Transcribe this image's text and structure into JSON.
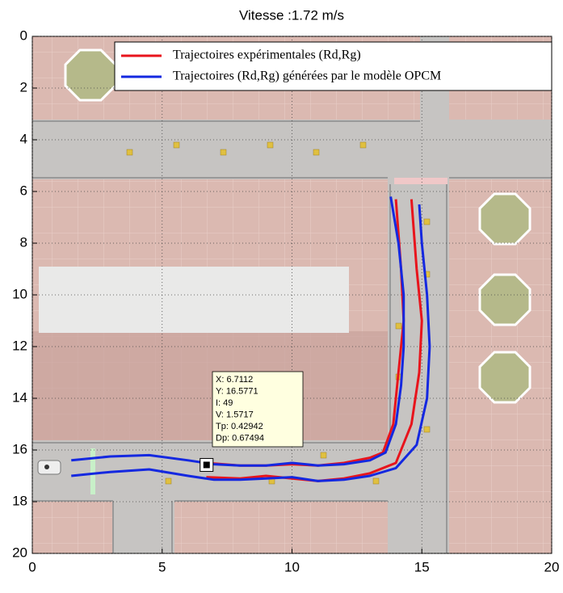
{
  "chart_data": {
    "type": "line",
    "title": "Vitesse :1.72 m/s",
    "xlim": [
      0,
      20
    ],
    "xticks": [
      0,
      5,
      10,
      15,
      20
    ],
    "ylim": [
      20,
      0
    ],
    "yticks": [
      0,
      2,
      4,
      6,
      8,
      10,
      12,
      14,
      16,
      18,
      20
    ],
    "grid": true,
    "legend": "top-right",
    "series": [
      {
        "name": "Trajectoires expérimentales (Rd,Rg)",
        "color": "#e8141c",
        "lines": [
          {
            "x": [
              6.7,
              8,
              9,
              10,
              11,
              12,
              13,
              13.5,
              13.9,
              14.1,
              14.3,
              14.2,
              14.0
            ],
            "values": [
              16.5,
              16.6,
              16.6,
              16.55,
              16.6,
              16.5,
              16.3,
              16.1,
              15.0,
              13.0,
              11.0,
              9.0,
              6.3
            ]
          },
          {
            "x": [
              6.7,
              8,
              9,
              10,
              11,
              12,
              13,
              14,
              14.6,
              14.9,
              15.0,
              14.8,
              14.6
            ],
            "values": [
              17.05,
              17.1,
              17.0,
              17.1,
              17.2,
              17.1,
              16.9,
              16.5,
              15.0,
              13.0,
              11.0,
              9.0,
              6.3
            ]
          }
        ]
      },
      {
        "name": "Trajectoires (Rd,Rg) générées par le modèle OPCM",
        "color": "#1428e0",
        "lines": [
          {
            "x": [
              1.5,
              3,
              4.5,
              6,
              7,
              8,
              9,
              10,
              11,
              12,
              13,
              13.6,
              14.0,
              14.2,
              14.3,
              14.3,
              14.1,
              13.8
            ],
            "values": [
              16.4,
              16.25,
              16.2,
              16.4,
              16.55,
              16.6,
              16.6,
              16.5,
              16.6,
              16.55,
              16.4,
              16.1,
              15.0,
              13.5,
              12.0,
              10.0,
              8.0,
              6.2
            ]
          },
          {
            "x": [
              1.5,
              3,
              4.5,
              6,
              7,
              8,
              9,
              10,
              11,
              12,
              13,
              14,
              14.8,
              15.2,
              15.3,
              15.2,
              15.0,
              14.9
            ],
            "values": [
              17.0,
              16.85,
              16.75,
              17.0,
              17.15,
              17.15,
              17.1,
              17.05,
              17.2,
              17.15,
              17.0,
              16.7,
              15.8,
              14.0,
              12.0,
              10.0,
              8.0,
              6.5
            ]
          }
        ]
      }
    ],
    "datatip": {
      "x": 6.7112,
      "y": 16.5771,
      "lines": [
        "X: 6.7112",
        "Y: 16.5771",
        "I: 49",
        "V: 1.5717",
        "Tp: 0.42942",
        "Dp: 0.67494"
      ]
    }
  }
}
